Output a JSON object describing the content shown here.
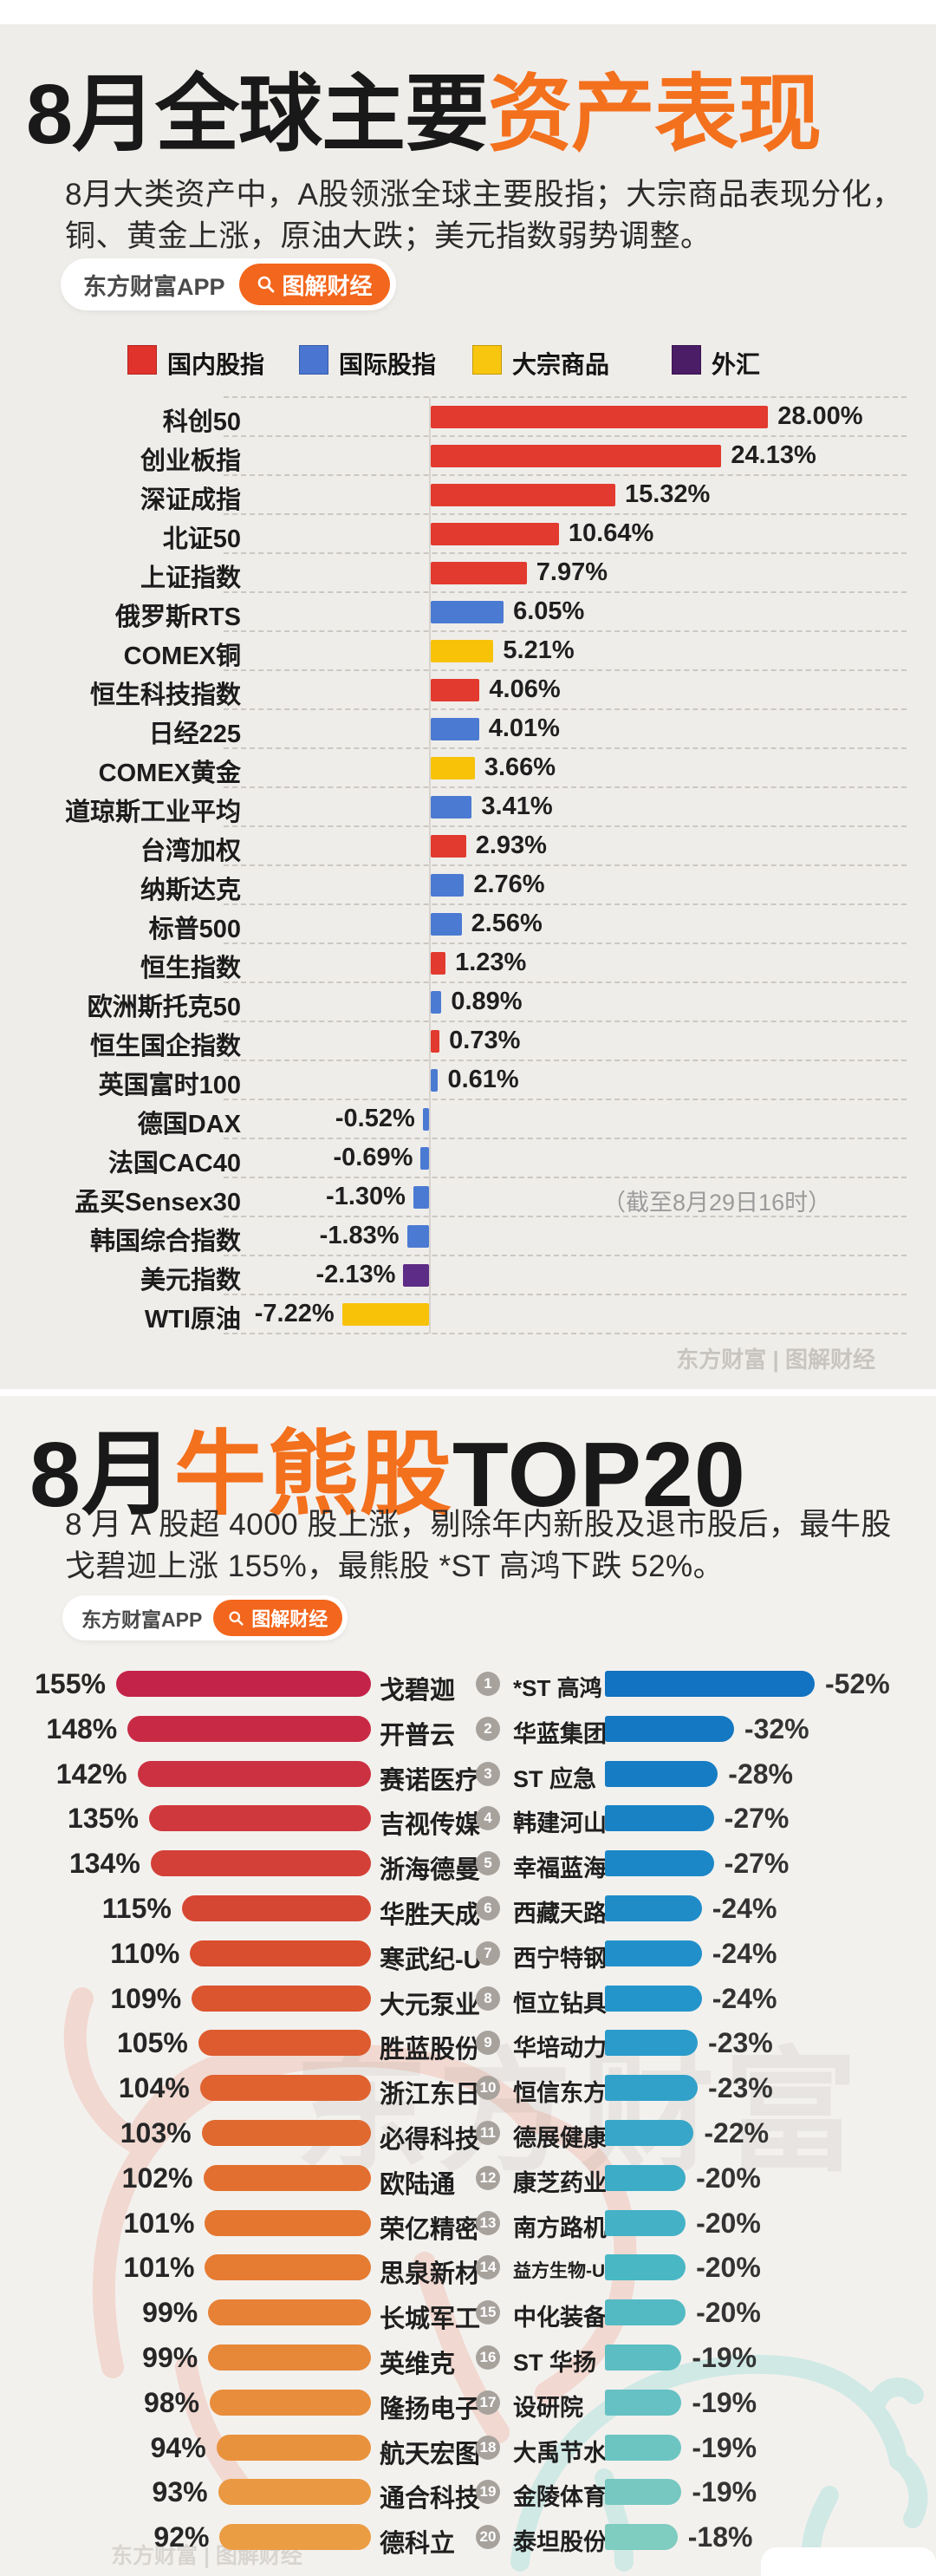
{
  "section1": {
    "title_black": "8月全球主要",
    "title_orange": "资产表现",
    "subtitle_line1": "8月大类资产中，A股领涨全球主要股指；大宗商品表现分化，",
    "subtitle_line2": "铜、黄金上涨，原油大跌；美元指数弱势调整。",
    "badge": {
      "app_name": "东方财富APP",
      "tag": "图解财经"
    },
    "legend": [
      {
        "label": "国内股指",
        "color": "#e0332c"
      },
      {
        "label": "国际股指",
        "color": "#4a76d2"
      },
      {
        "label": "大宗商品",
        "color": "#f8c60e"
      },
      {
        "label": "外汇",
        "color": "#4a1d66"
      }
    ],
    "note": "（截至8月29日16时）",
    "watermark": "东方财富 | 图解财经"
  },
  "section2": {
    "title_black_left": "8月",
    "title_orange": "牛熊股",
    "title_black_right": "TOP20",
    "subtitle_line1": "8 月 A 股超 4000 股上涨，剔除年内新股及退市股后，最牛股",
    "subtitle_line2": "戈碧迦上涨 155%，最熊股 *ST 高鸿下跌 52%。",
    "badge": {
      "app_name": "东方财富APP",
      "tag": "图解财经"
    },
    "watermark_big": "东方财富",
    "watermark_footer": "东方财富 | 图解财经"
  },
  "chart_data": [
    {
      "type": "bar",
      "orientation": "horizontal",
      "title": "8月全球主要资产表现",
      "unit": "%",
      "value_range": [
        -8,
        30
      ],
      "note": "（截至8月29日16时）",
      "legend": [
        "国内股指",
        "国际股指",
        "大宗商品",
        "外汇"
      ],
      "rows": [
        {
          "name": "科创50",
          "value": 28.0,
          "label": "28.00%",
          "group": "国内股指",
          "color": "#e23a2e"
        },
        {
          "name": "创业板指",
          "value": 24.13,
          "label": "24.13%",
          "group": "国内股指",
          "color": "#e23a2e"
        },
        {
          "name": "深证成指",
          "value": 15.32,
          "label": "15.32%",
          "group": "国内股指",
          "color": "#e23a2e"
        },
        {
          "name": "北证50",
          "value": 10.64,
          "label": "10.64%",
          "group": "国内股指",
          "color": "#e23a2e"
        },
        {
          "name": "上证指数",
          "value": 7.97,
          "label": "7.97%",
          "group": "国内股指",
          "color": "#e23a2e"
        },
        {
          "name": "俄罗斯RTS",
          "value": 6.05,
          "label": "6.05%",
          "group": "国际股指",
          "color": "#4b7ad2"
        },
        {
          "name": "COMEX铜",
          "value": 5.21,
          "label": "5.21%",
          "group": "大宗商品",
          "color": "#f7c208"
        },
        {
          "name": "恒生科技指数",
          "value": 4.06,
          "label": "4.06%",
          "group": "国内股指",
          "color": "#e23a2e"
        },
        {
          "name": "日经225",
          "value": 4.01,
          "label": "4.01%",
          "group": "国际股指",
          "color": "#4b7ad2"
        },
        {
          "name": "COMEX黄金",
          "value": 3.66,
          "label": "3.66%",
          "group": "大宗商品",
          "color": "#f7c208"
        },
        {
          "name": "道琼斯工业平均",
          "value": 3.41,
          "label": "3.41%",
          "group": "国际股指",
          "color": "#4b7ad2"
        },
        {
          "name": "台湾加权",
          "value": 2.93,
          "label": "2.93%",
          "group": "国内股指",
          "color": "#e23a2e"
        },
        {
          "name": "纳斯达克",
          "value": 2.76,
          "label": "2.76%",
          "group": "国际股指",
          "color": "#4b7ad2"
        },
        {
          "name": "标普500",
          "value": 2.56,
          "label": "2.56%",
          "group": "国际股指",
          "color": "#4b7ad2"
        },
        {
          "name": "恒生指数",
          "value": 1.23,
          "label": "1.23%",
          "group": "国内股指",
          "color": "#e23a2e"
        },
        {
          "name": "欧洲斯托克50",
          "value": 0.89,
          "label": "0.89%",
          "group": "国际股指",
          "color": "#4b7ad2"
        },
        {
          "name": "恒生国企指数",
          "value": 0.73,
          "label": "0.73%",
          "group": "国内股指",
          "color": "#e23a2e"
        },
        {
          "name": "英国富时100",
          "value": 0.61,
          "label": "0.61%",
          "group": "国际股指",
          "color": "#4b7ad2"
        },
        {
          "name": "德国DAX",
          "value": -0.52,
          "label": "-0.52%",
          "group": "国际股指",
          "color": "#4b7ad2"
        },
        {
          "name": "法国CAC40",
          "value": -0.69,
          "label": "-0.69%",
          "group": "国际股指",
          "color": "#4b7ad2"
        },
        {
          "name": "孟买Sensex30",
          "value": -1.3,
          "label": "-1.30%",
          "group": "国际股指",
          "color": "#4b7ad2"
        },
        {
          "name": "韩国综合指数",
          "value": -1.83,
          "label": "-1.83%",
          "group": "国际股指",
          "color": "#4b7ad2"
        },
        {
          "name": "美元指数",
          "value": -2.13,
          "label": "-2.13%",
          "group": "外汇",
          "color": "#5c2c86"
        },
        {
          "name": "WTI原油",
          "value": -7.22,
          "label": "-7.22%",
          "group": "大宗商品",
          "color": "#f7c208"
        }
      ]
    },
    {
      "type": "bar",
      "orientation": "horizontal",
      "title": "8月牛股TOP20",
      "unit": "%",
      "rows": [
        {
          "rank": 1,
          "name": "戈碧迦",
          "value": 155,
          "label": "155%",
          "color": "#c42349"
        },
        {
          "rank": 2,
          "name": "开普云",
          "value": 148,
          "label": "148%",
          "color": "#c82a45"
        },
        {
          "rank": 3,
          "name": "赛诺医疗",
          "value": 142,
          "label": "142%",
          "color": "#cb3140"
        },
        {
          "rank": 4,
          "name": "吉视传媒",
          "value": 135,
          "label": "135%",
          "color": "#cf383c"
        },
        {
          "rank": 5,
          "name": "浙海德曼",
          "value": 134,
          "label": "134%",
          "color": "#d24037"
        },
        {
          "rank": 6,
          "name": "华胜天成",
          "value": 115,
          "label": "115%",
          "color": "#d64733"
        },
        {
          "rank": 7,
          "name": "寒武纪-U",
          "value": 110,
          "label": "110%",
          "color": "#d94e2e"
        },
        {
          "rank": 8,
          "name": "大元泵业",
          "value": 109,
          "label": "109%",
          "color": "#db552e"
        },
        {
          "rank": 9,
          "name": "胜蓝股份",
          "value": 105,
          "label": "105%",
          "color": "#dd5b2e"
        },
        {
          "rank": 10,
          "name": "浙江东日",
          "value": 104,
          "label": "104%",
          "color": "#df622f"
        },
        {
          "rank": 11,
          "name": "必得科技",
          "value": 103,
          "label": "103%",
          "color": "#e0692f"
        },
        {
          "rank": 12,
          "name": "欧陆通",
          "value": 102,
          "label": "102%",
          "color": "#e26f2f"
        },
        {
          "rank": 13,
          "name": "荣亿精密",
          "value": 101,
          "label": "101%",
          "color": "#e4762f"
        },
        {
          "rank": 14,
          "name": "思泉新材",
          "value": 101,
          "label": "101%",
          "color": "#e57c32"
        },
        {
          "rank": 15,
          "name": "长城军工",
          "value": 99,
          "label": "99%",
          "color": "#e68135"
        },
        {
          "rank": 16,
          "name": "英维克",
          "value": 99,
          "label": "99%",
          "color": "#e78738"
        },
        {
          "rank": 17,
          "name": "隆扬电子",
          "value": 98,
          "label": "98%",
          "color": "#e88d3b"
        },
        {
          "rank": 18,
          "name": "航天宏图",
          "value": 94,
          "label": "94%",
          "color": "#e9923e"
        },
        {
          "rank": 19,
          "name": "通合科技",
          "value": 93,
          "label": "93%",
          "color": "#ea9841"
        },
        {
          "rank": 20,
          "name": "德科立",
          "value": 92,
          "label": "92%",
          "color": "#eb9d44"
        }
      ]
    },
    {
      "type": "bar",
      "orientation": "horizontal",
      "title": "8月熊股TOP20",
      "unit": "%",
      "rows": [
        {
          "rank": 1,
          "name": "*ST 高鸿",
          "value": -52,
          "label": "-52%",
          "color": "#1173c1"
        },
        {
          "rank": 2,
          "name": "华蓝集团",
          "value": -32,
          "label": "-32%",
          "color": "#1478c2"
        },
        {
          "rank": 3,
          "name": "ST 应急",
          "value": -28,
          "label": "-28%",
          "color": "#167dc4"
        },
        {
          "rank": 4,
          "name": "韩建河山",
          "value": -27,
          "label": "-27%",
          "color": "#1982c5"
        },
        {
          "rank": 5,
          "name": "幸福蓝海",
          "value": -27,
          "label": "-27%",
          "color": "#1c87c7"
        },
        {
          "rank": 6,
          "name": "西藏天路",
          "value": -24,
          "label": "-24%",
          "color": "#1f8cc8"
        },
        {
          "rank": 7,
          "name": "西宁特钢",
          "value": -24,
          "label": "-24%",
          "color": "#2190ca"
        },
        {
          "rank": 8,
          "name": "恒立钻具",
          "value": -24,
          "label": "-24%",
          "color": "#2495cb"
        },
        {
          "rank": 9,
          "name": "华培动力",
          "value": -23,
          "label": "-23%",
          "color": "#2a9bca"
        },
        {
          "rank": 10,
          "name": "恒信东方",
          "value": -23,
          "label": "-23%",
          "color": "#31a1c9"
        },
        {
          "rank": 11,
          "name": "德展健康",
          "value": -22,
          "label": "-22%",
          "color": "#37a6c8"
        },
        {
          "rank": 12,
          "name": "康芝药业",
          "value": -20,
          "label": "-20%",
          "color": "#3dacc7"
        },
        {
          "rank": 13,
          "name": "南方路机",
          "value": -20,
          "label": "-20%",
          "color": "#44b1c6"
        },
        {
          "rank": 14,
          "name": "益方生物-U",
          "value": -20,
          "label": "-20%",
          "color": "#4ab7c5"
        },
        {
          "rank": 15,
          "name": "中化装备",
          "value": -20,
          "label": "-20%",
          "color": "#53bac4"
        },
        {
          "rank": 16,
          "name": "ST 华扬",
          "value": -19,
          "label": "-19%",
          "color": "#5cbec3"
        },
        {
          "rank": 17,
          "name": "设研院",
          "value": -19,
          "label": "-19%",
          "color": "#65c1c3"
        },
        {
          "rank": 18,
          "name": "大禹节水",
          "value": -19,
          "label": "-19%",
          "color": "#6dc5c2"
        },
        {
          "rank": 19,
          "name": "金陵体育",
          "value": -19,
          "label": "-19%",
          "color": "#76c8c1"
        },
        {
          "rank": 20,
          "name": "泰坦股份",
          "value": -18,
          "label": "-18%",
          "color": "#7fccc0"
        }
      ]
    }
  ]
}
